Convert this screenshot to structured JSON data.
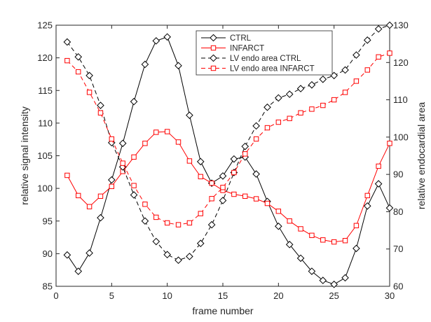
{
  "chart_data": {
    "type": "line",
    "title": "",
    "xlabel": "frame number",
    "ylabel_left": "relative signal intensity",
    "ylabel_right": "relative endocardial area",
    "xlim": [
      0,
      30
    ],
    "ylim_left": [
      85,
      125
    ],
    "ylim_right": [
      60,
      130
    ],
    "x_ticks": [
      0,
      5,
      10,
      15,
      20,
      25,
      30
    ],
    "y_ticks_left": [
      85,
      90,
      95,
      100,
      105,
      110,
      115,
      120,
      125
    ],
    "y_ticks_right": [
      60,
      70,
      80,
      90,
      100,
      110,
      120,
      130
    ],
    "grid": false,
    "legend_position": "top-center",
    "x": [
      1,
      2,
      3,
      4,
      5,
      6,
      7,
      8,
      9,
      10,
      11,
      12,
      13,
      14,
      15,
      16,
      17,
      18,
      19,
      20,
      21,
      22,
      23,
      24,
      25,
      26,
      27,
      28,
      29,
      30
    ],
    "series": [
      {
        "name": "CTRL",
        "axis": "left",
        "color": "#000000",
        "line_style": "solid",
        "marker": "diamond",
        "values": [
          89.8,
          87.3,
          90.1,
          95.5,
          101.3,
          106.9,
          113.3,
          119.0,
          122.6,
          123.2,
          118.8,
          111.2,
          104.1,
          100.8,
          101.9,
          104.5,
          104.8,
          102.2,
          98.0,
          94.2,
          91.4,
          89.3,
          87.3,
          85.9,
          85.3,
          86.3,
          90.8,
          97.3,
          100.7,
          97.0
        ]
      },
      {
        "name": "INFARCT",
        "axis": "left",
        "color": "#ff0000",
        "line_style": "solid",
        "marker": "square",
        "values": [
          102.0,
          98.9,
          97.2,
          98.8,
          100.3,
          102.6,
          104.8,
          106.9,
          108.6,
          108.7,
          107.1,
          104.2,
          101.8,
          100.8,
          99.7,
          99.1,
          98.8,
          98.4,
          97.7,
          96.5,
          95.0,
          93.8,
          92.8,
          92.1,
          91.8,
          92.0,
          94.3,
          98.9,
          103.4,
          106.9
        ]
      },
      {
        "name": "LV endo area CTRL",
        "axis": "right",
        "color": "#000000",
        "line_style": "dashed",
        "marker": "diamond",
        "values": [
          125.5,
          121.5,
          116.5,
          108.5,
          98.5,
          92.0,
          84.5,
          77.5,
          72.0,
          68.5,
          67.0,
          68.0,
          71.5,
          76.5,
          83.0,
          90.5,
          97.5,
          103.0,
          108.0,
          110.5,
          111.5,
          113.0,
          114.0,
          115.5,
          116.5,
          118.0,
          122.0,
          126.0,
          129.0,
          130.0
        ]
      },
      {
        "name": "LV endo area INFARCT",
        "axis": "right",
        "color": "#ff0000",
        "line_style": "dashed",
        "marker": "square",
        "values": [
          120.5,
          117.5,
          112.0,
          106.5,
          99.5,
          93.0,
          87.0,
          82.0,
          78.5,
          77.0,
          76.5,
          77.0,
          79.5,
          83.5,
          86.5,
          90.5,
          95.5,
          99.5,
          102.5,
          104.0,
          105.0,
          106.5,
          107.5,
          108.5,
          110.0,
          112.0,
          115.0,
          118.0,
          121.5,
          122.5
        ]
      }
    ]
  }
}
